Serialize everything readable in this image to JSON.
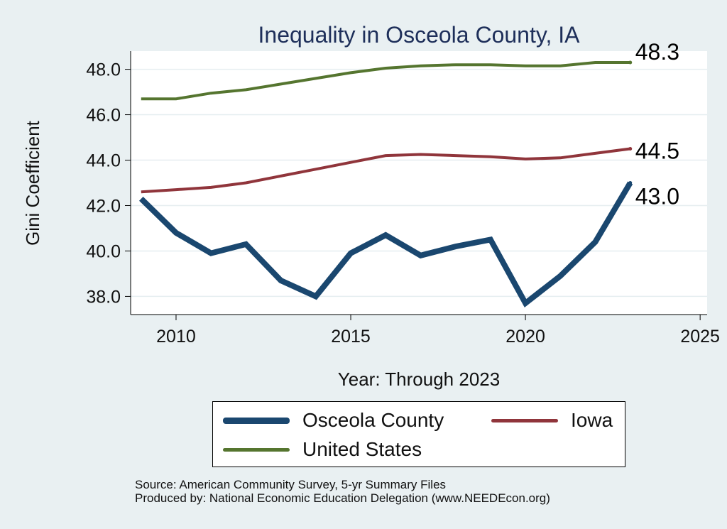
{
  "chart_data": {
    "type": "line",
    "title": "Inequality in Osceola County, IA",
    "xlabel": "Year: Through 2023",
    "ylabel": "Gini Coefficient",
    "xlim": [
      2008.7,
      2025.2
    ],
    "ylim": [
      37.2,
      48.8
    ],
    "xticks": [
      2010,
      2015,
      2020,
      2025
    ],
    "xtick_labels": [
      "2010",
      "2015",
      "2020",
      "2025"
    ],
    "yticks": [
      38,
      40,
      42,
      44,
      46,
      48
    ],
    "ytick_labels": [
      "38.0",
      "40.0",
      "42.0",
      "44.0",
      "46.0",
      "48.0"
    ],
    "grid": true,
    "legend_position": "bottom",
    "x": [
      2009,
      2010,
      2011,
      2012,
      2013,
      2014,
      2015,
      2016,
      2017,
      2018,
      2019,
      2020,
      2021,
      2022,
      2023
    ],
    "series": [
      {
        "name": "Osceola County",
        "color": "#1a476f",
        "values": [
          42.3,
          40.8,
          39.9,
          40.3,
          38.7,
          38.0,
          39.9,
          40.7,
          39.8,
          40.2,
          40.5,
          37.7,
          38.9,
          40.4,
          43.0
        ],
        "end_label": "43.0"
      },
      {
        "name": "Iowa",
        "color": "#90353b",
        "values": [
          42.6,
          42.7,
          42.8,
          43.0,
          43.3,
          43.6,
          43.9,
          44.2,
          44.25,
          44.2,
          44.15,
          44.05,
          44.1,
          44.3,
          44.5
        ],
        "end_label": "44.5"
      },
      {
        "name": "United States",
        "color": "#55752f",
        "values": [
          46.7,
          46.7,
          46.95,
          47.1,
          47.35,
          47.6,
          47.85,
          48.05,
          48.15,
          48.2,
          48.2,
          48.15,
          48.15,
          48.3,
          48.3
        ],
        "end_label": "48.3"
      }
    ]
  },
  "legend": {
    "items": [
      {
        "label": "Osceola County",
        "color": "#1a476f"
      },
      {
        "label": "Iowa",
        "color": "#90353b"
      },
      {
        "label": "United States",
        "color": "#55752f"
      }
    ]
  },
  "source": {
    "line1": "Source: American Community Survey, 5-yr Summary Files",
    "line2": "Produced by: National Economic Education Delegation (www.NEEDEcon.org)"
  }
}
